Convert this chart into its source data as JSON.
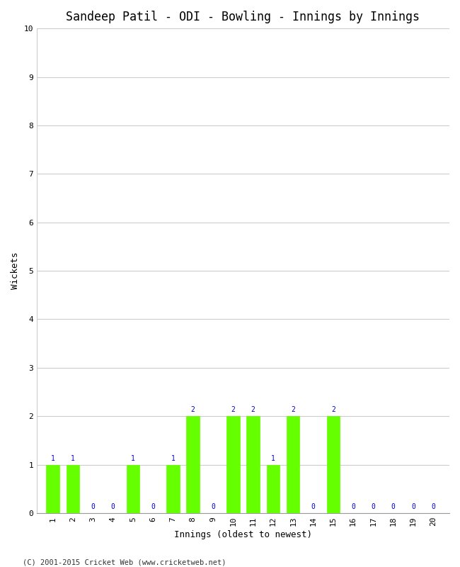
{
  "title": "Sandeep Patil - ODI - Bowling - Innings by Innings",
  "xlabel": "Innings (oldest to newest)",
  "ylabel": "Wickets",
  "footnote": "(C) 2001-2015 Cricket Web (www.cricketweb.net)",
  "innings": [
    1,
    2,
    3,
    4,
    5,
    6,
    7,
    8,
    9,
    10,
    11,
    12,
    13,
    14,
    15,
    16,
    17,
    18,
    19,
    20
  ],
  "wickets": [
    1,
    1,
    0,
    0,
    1,
    0,
    1,
    2,
    0,
    2,
    2,
    1,
    2,
    0,
    2,
    0,
    0,
    0,
    0,
    0
  ],
  "bar_color": "#66ff00",
  "label_color": "#0000cc",
  "ylim": [
    0,
    10
  ],
  "yticks": [
    0,
    1,
    2,
    3,
    4,
    5,
    6,
    7,
    8,
    9,
    10
  ],
  "background_color": "#ffffff",
  "plot_bg_color": "#ffffff",
  "grid_color": "#cccccc",
  "title_fontsize": 12,
  "axis_label_fontsize": 9,
  "tick_fontsize": 8,
  "bar_label_fontsize": 7,
  "footnote_fontsize": 7.5
}
